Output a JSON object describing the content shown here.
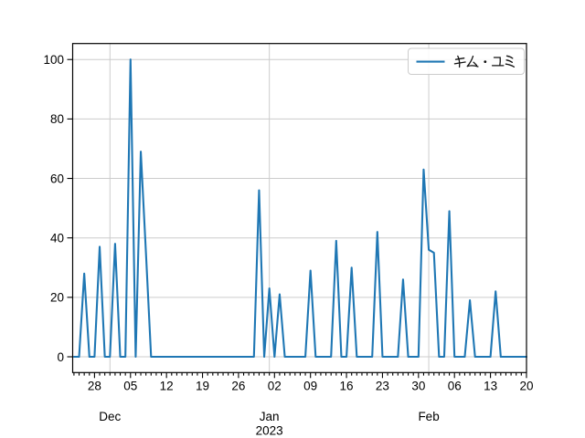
{
  "chart_data": {
    "type": "line",
    "title": "",
    "legend": {
      "label": "キム・ユミ",
      "position": "upper-right"
    },
    "colors": {
      "line": "#1f77b4",
      "grid": "#cccccc",
      "spine": "#000000",
      "text": "#000000",
      "legend_border": "#cccccc",
      "background": "#ffffff"
    },
    "x_axis": {
      "start_date": "2022-11-24",
      "end_date": "2023-02-20",
      "minor_ticks": "daily",
      "major_tick_labels": [
        {
          "date": "2022-11-28",
          "label": "28"
        },
        {
          "date": "2022-12-05",
          "label": "05"
        },
        {
          "date": "2022-12-12",
          "label": "12"
        },
        {
          "date": "2022-12-19",
          "label": "19"
        },
        {
          "date": "2022-12-26",
          "label": "26"
        },
        {
          "date": "2023-01-02",
          "label": "02"
        },
        {
          "date": "2023-01-09",
          "label": "09"
        },
        {
          "date": "2023-01-16",
          "label": "16"
        },
        {
          "date": "2023-01-23",
          "label": "23"
        },
        {
          "date": "2023-01-30",
          "label": "30"
        },
        {
          "date": "2023-02-06",
          "label": "06"
        },
        {
          "date": "2023-02-13",
          "label": "13"
        },
        {
          "date": "2023-02-20",
          "label": "20"
        }
      ],
      "month_labels": [
        {
          "date": "2022-12-01",
          "label": "Dec",
          "sub": ""
        },
        {
          "date": "2023-01-01",
          "label": "Jan",
          "sub": "2023"
        },
        {
          "date": "2023-02-01",
          "label": "Feb",
          "sub": ""
        }
      ]
    },
    "y_axis": {
      "ticks": [
        0,
        20,
        40,
        60,
        80,
        100
      ],
      "lim": [
        -5.3,
        105.4
      ]
    },
    "grid": {
      "horizontal_at": [
        0,
        20,
        40,
        60,
        80,
        100
      ],
      "vertical_at_dates": [
        "2022-12-01",
        "2023-01-01",
        "2023-02-01"
      ]
    },
    "series": [
      {
        "name": "キム・ユミ",
        "color": "#1f77b4",
        "dates": [
          "2022-11-24",
          "2022-11-25",
          "2022-11-26",
          "2022-11-27",
          "2022-11-28",
          "2022-11-29",
          "2022-11-30",
          "2022-12-01",
          "2022-12-02",
          "2022-12-03",
          "2022-12-04",
          "2022-12-05",
          "2022-12-06",
          "2022-12-07",
          "2022-12-08",
          "2022-12-09",
          "2022-12-10",
          "2022-12-11",
          "2022-12-12",
          "2022-12-13",
          "2022-12-14",
          "2022-12-15",
          "2022-12-16",
          "2022-12-17",
          "2022-12-18",
          "2022-12-19",
          "2022-12-20",
          "2022-12-21",
          "2022-12-22",
          "2022-12-23",
          "2022-12-24",
          "2022-12-25",
          "2022-12-26",
          "2022-12-27",
          "2022-12-28",
          "2022-12-29",
          "2022-12-30",
          "2022-12-31",
          "2023-01-01",
          "2023-01-02",
          "2023-01-03",
          "2023-01-04",
          "2023-01-05",
          "2023-01-06",
          "2023-01-07",
          "2023-01-08",
          "2023-01-09",
          "2023-01-10",
          "2023-01-11",
          "2023-01-12",
          "2023-01-13",
          "2023-01-14",
          "2023-01-15",
          "2023-01-16",
          "2023-01-17",
          "2023-01-18",
          "2023-01-19",
          "2023-01-20",
          "2023-01-21",
          "2023-01-22",
          "2023-01-23",
          "2023-01-24",
          "2023-01-25",
          "2023-01-26",
          "2023-01-27",
          "2023-01-28",
          "2023-01-29",
          "2023-01-30",
          "2023-01-31",
          "2023-02-01",
          "2023-02-02",
          "2023-02-03",
          "2023-02-04",
          "2023-02-05",
          "2023-02-06",
          "2023-02-07",
          "2023-02-08",
          "2023-02-09",
          "2023-02-10",
          "2023-02-11",
          "2023-02-12",
          "2023-02-13",
          "2023-02-14",
          "2023-02-15",
          "2023-02-16",
          "2023-02-17",
          "2023-02-18",
          "2023-02-19",
          "2023-02-20"
        ],
        "values": [
          0,
          0,
          28,
          0,
          0,
          37,
          0,
          0,
          38,
          0,
          0,
          100,
          0,
          69,
          35,
          0,
          0,
          0,
          0,
          0,
          0,
          0,
          0,
          0,
          0,
          0,
          0,
          0,
          0,
          0,
          0,
          0,
          0,
          0,
          0,
          0,
          56,
          0,
          23,
          0,
          21,
          0,
          0,
          0,
          0,
          0,
          29,
          0,
          0,
          0,
          0,
          39,
          0,
          0,
          30,
          0,
          0,
          0,
          0,
          42,
          0,
          0,
          0,
          0,
          26,
          0,
          0,
          0,
          63,
          36,
          35,
          0,
          0,
          49,
          0,
          0,
          0,
          19,
          0,
          0,
          0,
          0,
          22,
          0,
          0,
          0,
          0,
          0,
          0
        ]
      }
    ]
  }
}
